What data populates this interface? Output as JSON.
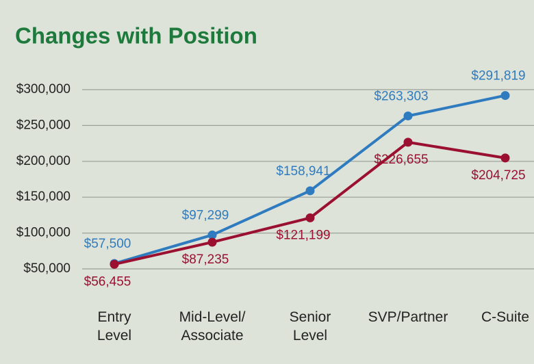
{
  "chart_data": {
    "type": "line",
    "title": "Changes with Position",
    "categories": [
      "Entry\nLevel",
      "Mid-Level/\nAssociate",
      "Senior\nLevel",
      "SVP/Partner",
      "C-Suite"
    ],
    "series": [
      {
        "color": "#2f7bbf",
        "values": [
          57500,
          97299,
          158941,
          263303,
          291819
        ],
        "value_labels": [
          "$57,500",
          "$97,299",
          "$158,941",
          "$263,303",
          "$291,819"
        ]
      },
      {
        "color": "#9b1030",
        "values": [
          56455,
          87235,
          121199,
          226655,
          204725
        ],
        "value_labels": [
          "$56,455",
          "$87,235",
          "$121,199",
          "$226,655",
          "$204,725"
        ]
      }
    ],
    "ylim": [
      50000,
      300000
    ],
    "yticks": [
      {
        "value": 50000,
        "label": "$50,000"
      },
      {
        "value": 100000,
        "label": "$100,000"
      },
      {
        "value": 150000,
        "label": "$150,000"
      },
      {
        "value": 200000,
        "label": "$200,000"
      },
      {
        "value": 250000,
        "label": "$250,000"
      },
      {
        "value": 300000,
        "label": "$300,000"
      }
    ],
    "grid": true
  }
}
